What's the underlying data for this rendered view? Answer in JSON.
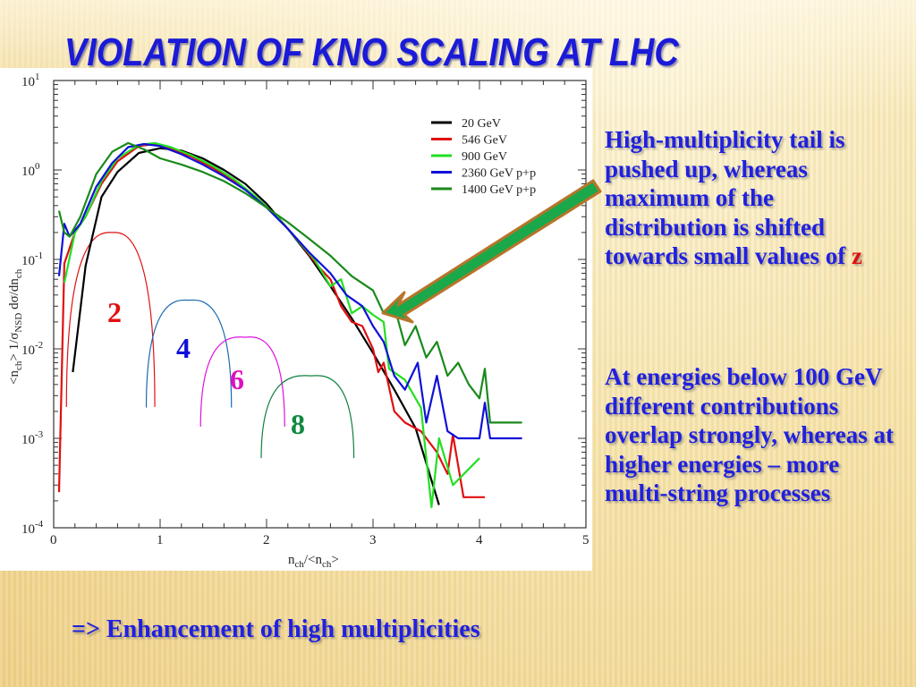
{
  "slide": {
    "title": "VIOLATION OF KNO SCALING AT LHC",
    "paragraph1": "High-multiplicity tail is pushed up, whereas maximum of the distribution is shifted towards small values of",
    "paragraph1_highlight": "z",
    "paragraph2": "At energies below 100 GeV different contributions overlap strongly, whereas at higher energies – more multi-string processes",
    "conclusion_arrow": "=>",
    "conclusion": "Enhancement of high multiplicities",
    "colors": {
      "title": "#1a1ad8",
      "text": "#2020e0",
      "highlight": "#e01010",
      "arrow": "#1aa84a"
    }
  },
  "chart_data": {
    "type": "line",
    "xlabel": "n_ch/<n_ch>",
    "ylabel": "<n_ch> 1/σ_NSD dσ/dn_ch",
    "xlim": [
      0,
      5
    ],
    "ylim": [
      0.0001,
      10
    ],
    "yscale": "log",
    "xticks": [
      "0",
      "1",
      "2",
      "3",
      "4",
      "5"
    ],
    "yticks": [
      {
        "base": "10",
        "exp": "1"
      },
      {
        "base": "10",
        "exp": "0"
      },
      {
        "base": "10",
        "exp": "-1"
      },
      {
        "base": "10",
        "exp": "-2"
      },
      {
        "base": "10",
        "exp": "-3"
      },
      {
        "base": "10",
        "exp": "-4"
      }
    ],
    "legend_position": "top-right",
    "series": [
      {
        "name": "20 GeV",
        "color": "#000000",
        "points": [
          [
            0.18,
            0.0055
          ],
          [
            0.3,
            0.085
          ],
          [
            0.45,
            0.5
          ],
          [
            0.6,
            0.95
          ],
          [
            0.8,
            1.55
          ],
          [
            1.0,
            1.75
          ],
          [
            1.2,
            1.65
          ],
          [
            1.4,
            1.35
          ],
          [
            1.6,
            1.0
          ],
          [
            1.8,
            0.7
          ],
          [
            2.0,
            0.42
          ],
          [
            2.2,
            0.22
          ],
          [
            2.4,
            0.11
          ],
          [
            2.6,
            0.05
          ],
          [
            2.8,
            0.022
          ],
          [
            3.0,
            0.009
          ],
          [
            3.2,
            0.0035
          ],
          [
            3.4,
            0.0013
          ],
          [
            3.62,
            0.00018
          ]
        ]
      },
      {
        "name": "546 GeV",
        "color": "#e01010",
        "points": [
          [
            0.05,
            0.00025
          ],
          [
            0.1,
            0.09
          ],
          [
            0.2,
            0.2
          ],
          [
            0.3,
            0.3
          ],
          [
            0.45,
            0.7
          ],
          [
            0.6,
            1.25
          ],
          [
            0.8,
            1.85
          ],
          [
            0.95,
            1.95
          ],
          [
            1.1,
            1.75
          ],
          [
            1.3,
            1.4
          ],
          [
            1.5,
            1.05
          ],
          [
            1.7,
            0.75
          ],
          [
            1.9,
            0.5
          ],
          [
            2.1,
            0.3
          ],
          [
            2.3,
            0.16
          ],
          [
            2.5,
            0.08
          ],
          [
            2.6,
            0.06
          ],
          [
            2.7,
            0.03
          ],
          [
            2.8,
            0.02
          ],
          [
            2.9,
            0.018
          ],
          [
            3.0,
            0.01
          ],
          [
            3.05,
            0.0055
          ],
          [
            3.1,
            0.007
          ],
          [
            3.2,
            0.002
          ],
          [
            3.3,
            0.0015
          ],
          [
            3.45,
            0.0012
          ],
          [
            3.6,
            0.0007
          ],
          [
            3.7,
            0.0004
          ],
          [
            3.75,
            0.0011
          ],
          [
            3.85,
            0.00022
          ],
          [
            4.05,
            0.00022
          ]
        ]
      },
      {
        "name": "900 GeV",
        "color": "#22e022",
        "points": [
          [
            0.1,
            0.055
          ],
          [
            0.2,
            0.2
          ],
          [
            0.3,
            0.3
          ],
          [
            0.45,
            0.75
          ],
          [
            0.6,
            1.35
          ],
          [
            0.8,
            1.9
          ],
          [
            0.95,
            2.0
          ],
          [
            1.1,
            1.8
          ],
          [
            1.3,
            1.45
          ],
          [
            1.5,
            1.1
          ],
          [
            1.7,
            0.78
          ],
          [
            1.9,
            0.5
          ],
          [
            2.1,
            0.3
          ],
          [
            2.3,
            0.16
          ],
          [
            2.45,
            0.1
          ],
          [
            2.6,
            0.05
          ],
          [
            2.7,
            0.06
          ],
          [
            2.8,
            0.025
          ],
          [
            2.9,
            0.03
          ],
          [
            3.0,
            0.024
          ],
          [
            3.1,
            0.02
          ],
          [
            3.15,
            0.006
          ],
          [
            3.3,
            0.0045
          ],
          [
            3.45,
            0.0022
          ],
          [
            3.55,
            0.00017
          ],
          [
            3.62,
            0.001
          ],
          [
            3.75,
            0.0003
          ],
          [
            4.0,
            0.0006
          ]
        ]
      },
      {
        "name": "2360 GeV p+p",
        "color": "#1010d8",
        "points": [
          [
            0.05,
            0.065
          ],
          [
            0.1,
            0.25
          ],
          [
            0.15,
            0.18
          ],
          [
            0.25,
            0.25
          ],
          [
            0.4,
            0.65
          ],
          [
            0.55,
            1.2
          ],
          [
            0.7,
            1.8
          ],
          [
            0.85,
            1.95
          ],
          [
            1.0,
            1.85
          ],
          [
            1.2,
            1.5
          ],
          [
            1.4,
            1.15
          ],
          [
            1.6,
            0.85
          ],
          [
            1.8,
            0.6
          ],
          [
            2.0,
            0.38
          ],
          [
            2.2,
            0.22
          ],
          [
            2.4,
            0.12
          ],
          [
            2.6,
            0.07
          ],
          [
            2.75,
            0.04
          ],
          [
            2.9,
            0.03
          ],
          [
            3.0,
            0.018
          ],
          [
            3.1,
            0.012
          ],
          [
            3.2,
            0.005
          ],
          [
            3.3,
            0.0035
          ],
          [
            3.42,
            0.007
          ],
          [
            3.5,
            0.0015
          ],
          [
            3.6,
            0.005
          ],
          [
            3.7,
            0.0012
          ],
          [
            3.8,
            0.001
          ],
          [
            4.0,
            0.001
          ],
          [
            4.05,
            0.0025
          ],
          [
            4.1,
            0.001
          ],
          [
            4.4,
            0.001
          ]
        ]
      },
      {
        "name": "1400 GeV p+p",
        "color": "#1a8a1a",
        "points": [
          [
            0.05,
            0.35
          ],
          [
            0.1,
            0.2
          ],
          [
            0.15,
            0.18
          ],
          [
            0.25,
            0.3
          ],
          [
            0.4,
            0.9
          ],
          [
            0.55,
            1.6
          ],
          [
            0.7,
            2.0
          ],
          [
            0.85,
            1.7
          ],
          [
            1.0,
            1.35
          ],
          [
            1.2,
            1.15
          ],
          [
            1.4,
            0.95
          ],
          [
            1.6,
            0.75
          ],
          [
            1.8,
            0.55
          ],
          [
            2.0,
            0.38
          ],
          [
            2.2,
            0.26
          ],
          [
            2.4,
            0.17
          ],
          [
            2.6,
            0.11
          ],
          [
            2.8,
            0.065
          ],
          [
            3.0,
            0.045
          ],
          [
            3.1,
            0.025
          ],
          [
            3.2,
            0.03
          ],
          [
            3.3,
            0.011
          ],
          [
            3.4,
            0.018
          ],
          [
            3.5,
            0.008
          ],
          [
            3.6,
            0.012
          ],
          [
            3.7,
            0.005
          ],
          [
            3.8,
            0.007
          ],
          [
            3.9,
            0.004
          ],
          [
            4.0,
            0.0028
          ],
          [
            4.05,
            0.006
          ],
          [
            4.1,
            0.0015
          ],
          [
            4.4,
            0.0015
          ]
        ]
      }
    ],
    "annotations": {
      "string_contributions": [
        {
          "label": "2",
          "color": "#e01010",
          "center_x": 0.55,
          "peak": 0.2,
          "x_left": 0.12,
          "x_right": 0.95
        },
        {
          "label": "4",
          "color": "#1a6ab0",
          "center_x": 1.27,
          "peak": 0.035,
          "x_left": 0.87,
          "x_right": 1.67
        },
        {
          "label": "6",
          "color": "#e010e0",
          "center_x": 1.8,
          "peak": 0.0135,
          "x_left": 1.38,
          "x_right": 2.17
        },
        {
          "label": "8",
          "color": "#108040",
          "center_x": 2.42,
          "peak": 0.005,
          "x_left": 1.95,
          "x_right": 2.82
        }
      ],
      "label_colors": {
        "2": "#e01010",
        "4": "#1010d8",
        "6": "#e010c0",
        "8": "#108a40"
      }
    }
  }
}
